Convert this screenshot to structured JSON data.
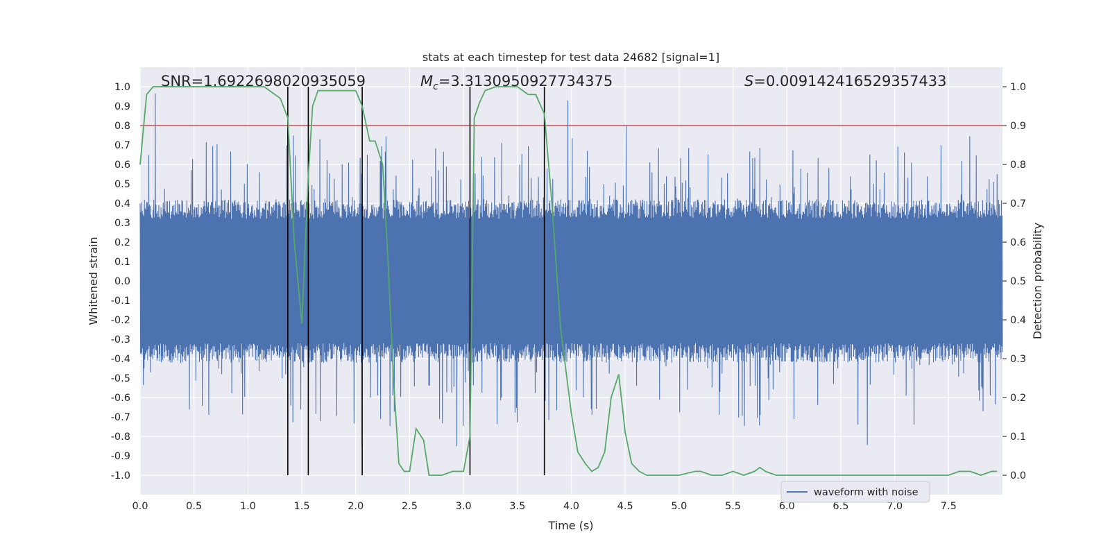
{
  "chart_data": {
    "type": "line",
    "title": "stats at each timestep for test data 24682 [signal=1]",
    "xlabel": "Time (s)",
    "ylabel": "Whitened strain",
    "ylabel_right": "Detection probability",
    "xlim": [
      0,
      8.0
    ],
    "ylim": [
      -1.1,
      1.1
    ],
    "ylim_right": [
      -0.05,
      1.05
    ],
    "x_ticks": [
      "0.0",
      "0.5",
      "1.0",
      "1.5",
      "2.0",
      "2.5",
      "3.0",
      "3.5",
      "4.0",
      "4.5",
      "5.0",
      "5.5",
      "6.0",
      "6.5",
      "7.0",
      "7.5"
    ],
    "y_ticks": [
      "-1.0",
      "-0.9",
      "-0.8",
      "-0.7",
      "-0.6",
      "-0.5",
      "-0.4",
      "-0.3",
      "-0.2",
      "-0.1",
      "0.0",
      "0.1",
      "0.2",
      "0.3",
      "0.4",
      "0.5",
      "0.6",
      "0.7",
      "0.8",
      "0.9",
      "1.0"
    ],
    "y_ticks_right": [
      "0.0",
      "0.1",
      "0.2",
      "0.3",
      "0.4",
      "0.5",
      "0.6",
      "0.7",
      "0.8",
      "0.9",
      "1.0"
    ],
    "annotations": {
      "snr": "SNR=1.6922698020935059",
      "mc_symbol": "M",
      "mc_sub": "c",
      "mc_value": "=3.3130950927734375",
      "s_symbol": "S",
      "s_value": "=0.009142416529357433"
    },
    "legend": {
      "label": "waveform with noise",
      "placement": "lower-right"
    },
    "threshold": {
      "value_right": 0.9,
      "color": "#c44e52"
    },
    "vlines": [
      1.37,
      1.56,
      2.06,
      3.06,
      3.75
    ],
    "vline_color": "#000000",
    "series": [
      {
        "name": "waveform with noise",
        "axis": "left",
        "color": "#4c72b0",
        "style": "dense noisy signal, core amplitude ~0.4, spikes up to ~1.0",
        "x_range": [
          0,
          8.0
        ],
        "core_amplitude": 0.4,
        "peak_amplitude": 1.0
      },
      {
        "name": "Detection probability",
        "axis": "right",
        "color": "#55a868",
        "x": [
          0.0,
          0.06,
          0.12,
          0.25,
          0.5,
          0.8,
          1.0,
          1.15,
          1.2,
          1.25,
          1.3,
          1.37,
          1.43,
          1.5,
          1.56,
          1.6,
          1.65,
          1.7,
          1.8,
          1.9,
          2.0,
          2.06,
          2.13,
          2.18,
          2.25,
          2.3,
          2.35,
          2.4,
          2.45,
          2.5,
          2.56,
          2.63,
          2.68,
          2.75,
          2.8,
          2.9,
          3.0,
          3.06,
          3.1,
          3.15,
          3.2,
          3.3,
          3.4,
          3.5,
          3.6,
          3.67,
          3.75,
          3.82,
          3.9,
          4.0,
          4.06,
          4.13,
          4.19,
          4.25,
          4.31,
          4.37,
          4.44,
          4.5,
          4.56,
          4.63,
          4.7,
          4.8,
          5.0,
          5.15,
          5.2,
          5.3,
          5.4,
          5.5,
          5.6,
          5.7,
          5.75,
          5.8,
          5.9,
          6.0,
          6.5,
          7.0,
          7.5,
          7.6,
          7.7,
          7.8,
          7.9,
          7.95
        ],
        "y": [
          0.8,
          0.98,
          1.0,
          1.0,
          1.0,
          1.0,
          1.0,
          1.0,
          0.99,
          0.98,
          0.97,
          0.92,
          0.6,
          0.39,
          0.77,
          0.95,
          0.99,
          0.99,
          0.99,
          0.99,
          0.99,
          0.95,
          0.86,
          0.86,
          0.8,
          0.55,
          0.25,
          0.03,
          0.01,
          0.01,
          0.12,
          0.09,
          0.0,
          0.0,
          0.0,
          0.01,
          0.01,
          0.1,
          0.92,
          0.96,
          0.99,
          1.0,
          1.0,
          1.0,
          0.98,
          0.98,
          0.93,
          0.7,
          0.38,
          0.16,
          0.06,
          0.03,
          0.01,
          0.02,
          0.06,
          0.2,
          0.26,
          0.11,
          0.03,
          0.01,
          0.0,
          0.0,
          0.0,
          0.01,
          0.01,
          0.0,
          0.0,
          0.01,
          0.0,
          0.01,
          0.02,
          0.01,
          0.0,
          0.0,
          0.0,
          0.0,
          0.0,
          0.01,
          0.01,
          0.0,
          0.01,
          0.01
        ]
      }
    ]
  }
}
